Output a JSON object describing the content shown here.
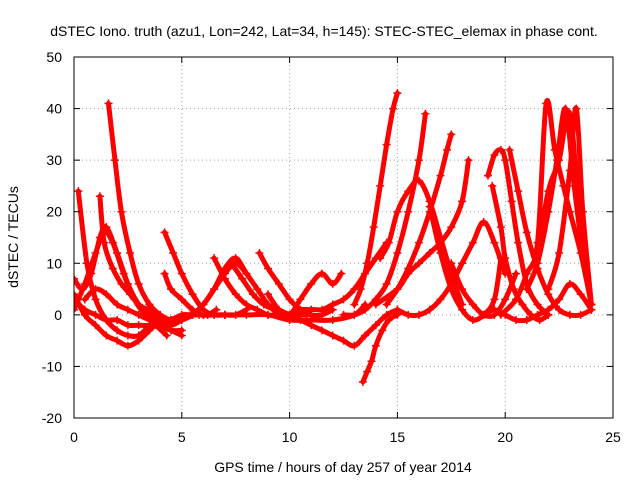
{
  "chart_data": {
    "type": "scatter",
    "title": "dSTEC Iono. truth (azu1, Lon=242, Lat=34, h=145): STEC-STEC_elemax in phase cont.",
    "xlabel": "GPS time / hours of day 257 of year 2014",
    "ylabel": "dSTEC  / TECUs",
    "xlim": [
      0,
      25
    ],
    "ylim": [
      -20,
      50
    ],
    "xticks": [
      0,
      5,
      10,
      15,
      20,
      25
    ],
    "yticks": [
      -20,
      -10,
      0,
      10,
      20,
      30,
      40,
      50
    ],
    "grid": true,
    "marker": "+",
    "color": "#ff0000",
    "series": [
      {
        "x": [
          0.0,
          0.5,
          1.0,
          1.5,
          2.0,
          2.5,
          3.0,
          3.5,
          4.0
        ],
        "y": [
          4,
          0,
          -2,
          -4,
          -5,
          -6,
          -5,
          -3,
          -1
        ]
      },
      {
        "x": [
          0.2,
          0.6,
          1.0,
          1.5,
          2.0,
          2.5,
          3.0,
          3.5
        ],
        "y": [
          24,
          10,
          3,
          -1,
          -3,
          -4,
          -4,
          -2
        ]
      },
      {
        "x": [
          0.0,
          0.5,
          1.0,
          1.4,
          1.8,
          2.3,
          2.8,
          3.3,
          3.8,
          4.3
        ],
        "y": [
          1,
          6,
          12,
          16,
          14,
          8,
          3,
          0,
          -2,
          -4
        ]
      },
      {
        "x": [
          0.0,
          0.4,
          0.8,
          1.2,
          1.5,
          2.0,
          2.5,
          3.0,
          3.5,
          4.0,
          4.5,
          5.0
        ],
        "y": [
          7,
          5,
          8,
          15,
          17,
          12,
          6,
          2,
          0,
          -2,
          -3,
          -4
        ]
      },
      {
        "x": [
          1.6,
          1.9,
          2.2,
          2.6,
          3.0,
          3.5,
          4.0,
          4.5,
          5.0,
          5.5
        ],
        "y": [
          41,
          30,
          20,
          12,
          6,
          2,
          0,
          -1,
          -1,
          0
        ]
      },
      {
        "x": [
          0.5,
          1.0,
          1.5,
          2.0,
          2.5,
          3.0,
          3.5,
          4.0,
          4.5,
          5.0
        ],
        "y": [
          3,
          5,
          4,
          2,
          1,
          0,
          -1,
          -2,
          -3,
          -3
        ]
      },
      {
        "x": [
          0.0,
          0.5,
          1.0,
          1.5,
          2.0,
          2.5,
          3.0,
          3.5,
          4.0,
          4.5,
          5.0,
          5.5,
          6.0
        ],
        "y": [
          3,
          1,
          0,
          -1,
          -1,
          -2,
          -2,
          -2,
          -1,
          -1,
          0,
          0,
          0
        ]
      },
      {
        "x": [
          1.2,
          1.4,
          1.8,
          2.2,
          2.6,
          3.0,
          3.4,
          3.8,
          4.2,
          4.6,
          5.0,
          5.4,
          5.8,
          6.2,
          6.6
        ],
        "y": [
          23,
          14,
          9,
          6,
          4,
          2,
          1,
          0,
          -1,
          -1,
          -1,
          0,
          0,
          0,
          1
        ]
      },
      {
        "x": [
          4.2,
          4.6,
          5.0,
          5.5,
          6.0,
          6.5,
          7.0,
          7.5,
          8.0
        ],
        "y": [
          16,
          12,
          8,
          4,
          1,
          0,
          0,
          0,
          1
        ]
      },
      {
        "x": [
          3.5,
          4.0,
          4.5,
          5.0,
          5.5,
          6.0,
          6.5,
          7.0,
          7.5,
          8.0
        ],
        "y": [
          2,
          -1,
          -2,
          -1,
          0,
          2,
          5,
          8,
          10,
          8
        ]
      },
      {
        "x": [
          4.2,
          4.5,
          5.0,
          5.5,
          6.0,
          6.5,
          7.0
        ],
        "y": [
          8,
          5,
          3,
          1,
          0,
          0,
          0
        ]
      },
      {
        "x": [
          5.5,
          6.0,
          6.5,
          7.0,
          7.5,
          8.0,
          8.5,
          9.0,
          9.5
        ],
        "y": [
          0,
          2,
          5,
          9,
          11,
          8,
          5,
          2,
          0
        ]
      },
      {
        "x": [
          6.5,
          7.0,
          7.5,
          8.0,
          8.5,
          9.0,
          9.5,
          10.0,
          10.5,
          11.0
        ],
        "y": [
          11,
          7,
          4,
          2,
          1,
          0,
          0,
          0,
          1,
          1
        ]
      },
      {
        "x": [
          7.3,
          7.8,
          8.3,
          8.8,
          9.3,
          9.8,
          10.3,
          10.8
        ],
        "y": [
          10,
          7,
          4,
          2,
          1,
          0,
          0,
          0
        ]
      },
      {
        "x": [
          8.6,
          9.0,
          9.5,
          10.0,
          10.5,
          11.0,
          11.5,
          12.0
        ],
        "y": [
          12,
          9,
          6,
          3,
          1,
          0,
          0,
          1
        ]
      },
      {
        "x": [
          9.0,
          9.5,
          10.0,
          10.5,
          11.0,
          11.5,
          12.0,
          12.4
        ],
        "y": [
          4,
          1,
          0,
          3,
          6,
          8,
          6,
          8
        ]
      },
      {
        "x": [
          9.5,
          10.0,
          10.5,
          11.0,
          11.5,
          12.0,
          12.5,
          13.0,
          13.5,
          14.0,
          14.5,
          15.0
        ],
        "y": [
          1,
          0,
          -1,
          -2,
          -3,
          -4,
          -5,
          -6,
          -4,
          -2,
          0,
          1
        ]
      },
      {
        "x": [
          6.0,
          7.0,
          8.0,
          9.0,
          10.0,
          11.0,
          12.0,
          13.0,
          13.5
        ],
        "y": [
          0,
          0,
          0,
          0,
          -1,
          -1,
          -1,
          0,
          2
        ]
      },
      {
        "x": [
          10.0,
          10.5,
          11.0,
          11.5,
          12.0,
          12.5,
          13.0,
          13.5,
          14.0,
          14.5
        ],
        "y": [
          0,
          0,
          1,
          1,
          2,
          3,
          5,
          8,
          11,
          14
        ]
      },
      {
        "x": [
          13.4,
          13.6,
          13.8,
          14.0,
          14.3,
          14.6,
          15.0
        ],
        "y": [
          -13,
          -11,
          -9,
          -6,
          -3,
          -1,
          0
        ]
      },
      {
        "x": [
          13.0,
          13.3,
          13.6,
          13.9,
          14.2,
          14.5,
          14.8,
          15.0
        ],
        "y": [
          2,
          5,
          10,
          17,
          25,
          33,
          40,
          43
        ]
      },
      {
        "x": [
          12.5,
          13.0,
          13.5,
          14.0,
          14.5,
          15.0,
          15.5,
          16.0,
          16.3
        ],
        "y": [
          0,
          0,
          1,
          3,
          6,
          12,
          20,
          30,
          39
        ]
      },
      {
        "x": [
          14.5,
          15.0,
          15.5,
          16.0,
          16.5,
          17.0,
          17.3,
          17.5
        ],
        "y": [
          2,
          5,
          9,
          14,
          20,
          27,
          32,
          35
        ]
      },
      {
        "x": [
          14.0,
          15.0,
          15.5,
          16.0,
          16.5,
          17.0,
          17.5,
          18.0,
          18.3
        ],
        "y": [
          2,
          5,
          8,
          10,
          12,
          14,
          17,
          22,
          30
        ]
      },
      {
        "x": [
          14.2,
          14.6,
          15.0,
          15.5,
          16.0,
          16.5,
          17.0,
          17.5,
          18.0
        ],
        "y": [
          11,
          14,
          20,
          24,
          26,
          22,
          15,
          8,
          2
        ]
      },
      {
        "x": [
          15.0,
          15.5,
          16.0,
          16.5,
          17.0,
          17.5,
          18.0,
          18.5,
          19.0,
          19.5,
          20.0
        ],
        "y": [
          1,
          0,
          0,
          1,
          3,
          6,
          10,
          14,
          18,
          14,
          8
        ]
      },
      {
        "x": [
          16.5,
          17.0,
          17.5,
          18.0,
          18.5,
          19.0,
          19.5,
          19.8
        ],
        "y": [
          21,
          12,
          5,
          1,
          -1,
          0,
          3,
          11
        ]
      },
      {
        "x": [
          17.5,
          18.0,
          18.5,
          19.0,
          19.5,
          20.0,
          20.5
        ],
        "y": [
          10,
          5,
          2,
          0,
          0,
          3,
          8
        ]
      },
      {
        "x": [
          19.2,
          19.5,
          19.8,
          20.0,
          20.3,
          20.6,
          21.0,
          21.5,
          22.0
        ],
        "y": [
          27,
          31,
          32,
          30,
          22,
          14,
          6,
          2,
          0
        ]
      },
      {
        "x": [
          19.4,
          19.8,
          20.0,
          20.4,
          20.8,
          21.2,
          21.6,
          22.0
        ],
        "y": [
          25,
          17,
          11,
          5,
          2,
          0,
          -1,
          0
        ]
      },
      {
        "x": [
          20.2,
          20.6,
          21.0,
          21.5,
          22.0,
          22.5,
          23.0,
          23.5,
          24.0
        ],
        "y": [
          32,
          24,
          16,
          9,
          4,
          1,
          0,
          0,
          1
        ]
      },
      {
        "x": [
          19.8,
          20.5,
          21.0,
          21.5,
          21.9,
          22.3,
          22.7,
          23.0,
          23.5,
          24.0
        ],
        "y": [
          0,
          3,
          8,
          14,
          41,
          32,
          25,
          20,
          12,
          2
        ]
      },
      {
        "x": [
          21.0,
          21.5,
          22.0,
          22.4,
          22.8,
          23.2,
          23.6,
          24.0
        ],
        "y": [
          5,
          10,
          20,
          30,
          40,
          25,
          12,
          2
        ]
      },
      {
        "x": [
          21.5,
          22.0,
          22.5,
          23.0,
          23.5,
          24.0
        ],
        "y": [
          12,
          24,
          30,
          39,
          16,
          2
        ]
      },
      {
        "x": [
          22.0,
          22.5,
          23.0,
          23.3,
          23.6,
          24.0
        ],
        "y": [
          5,
          12,
          28,
          40,
          20,
          2
        ]
      },
      {
        "x": [
          19.0,
          19.5,
          20.0,
          20.5,
          21.0,
          21.5,
          22.0,
          22.5,
          23.0,
          23.5,
          24.0
        ],
        "y": [
          0,
          1,
          0,
          -1,
          -1,
          0,
          1,
          3,
          6,
          4,
          1
        ]
      }
    ]
  }
}
